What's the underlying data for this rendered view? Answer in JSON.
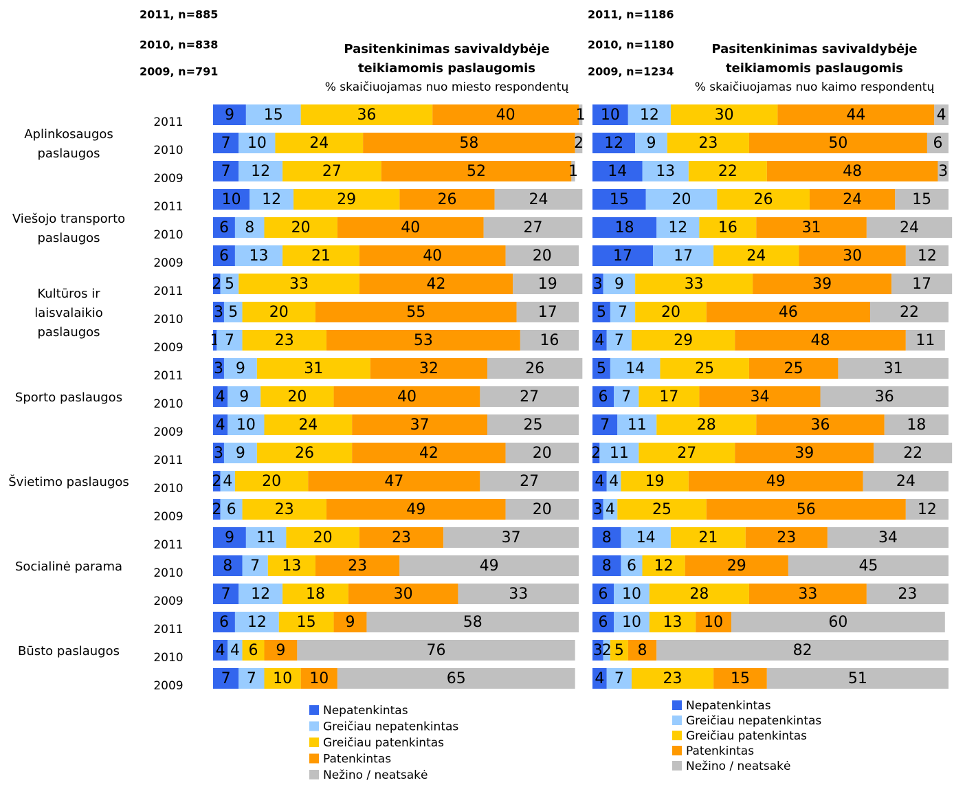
{
  "chart_data": [
    {
      "type": "bar",
      "orientation": "horizontal",
      "stacked": true,
      "title": "Pasitenkinimas savivaldybėje teikiamomis paslaugomis",
      "subtitle": "% skaičiuojamas nuo miesto respondentų",
      "sample_notes": [
        "2011, n=885",
        "2010, n=838",
        "2009, n=791"
      ],
      "groups": [
        "Aplinkosaugos paslaugos",
        "Viešojo transporto paslaugos",
        "Kultūros ir laisvalaikio paslaugos",
        "Sporto paslaugos",
        "Švietimo paslaugos",
        "Socialinė parama",
        "Būsto paslaugos"
      ],
      "categories": [
        "2011",
        "2010",
        "2009",
        "2011",
        "2010",
        "2009",
        "2011",
        "2010",
        "2009",
        "2011",
        "2010",
        "2009",
        "2011",
        "2010",
        "2009",
        "2011",
        "2010",
        "2009",
        "2011",
        "2010",
        "2009"
      ],
      "xlim": [
        0,
        100
      ],
      "series": [
        {
          "name": "Nepatenkintas",
          "color": "#3366ee",
          "values": [
            9,
            7,
            7,
            10,
            6,
            6,
            2,
            3,
            1,
            3,
            4,
            4,
            3,
            2,
            2,
            9,
            8,
            7,
            6,
            4,
            7
          ]
        },
        {
          "name": "Greičiau nepatenkintas",
          "color": "#99ccff",
          "values": [
            15,
            10,
            12,
            12,
            8,
            13,
            5,
            5,
            7,
            9,
            9,
            10,
            9,
            4,
            6,
            11,
            7,
            12,
            12,
            4,
            7
          ]
        },
        {
          "name": "Greičiau patenkintas",
          "color": "#ffcc00",
          "values": [
            36,
            24,
            27,
            29,
            20,
            21,
            33,
            20,
            23,
            31,
            20,
            24,
            26,
            20,
            23,
            20,
            13,
            18,
            15,
            6,
            10
          ]
        },
        {
          "name": "Patenkintas",
          "color": "#ff9900",
          "values": [
            40,
            58,
            52,
            26,
            40,
            40,
            42,
            55,
            53,
            32,
            40,
            37,
            42,
            47,
            49,
            23,
            23,
            30,
            9,
            9,
            10
          ]
        },
        {
          "name": "Nežino / neatsakė",
          "color": "#c0c0c0",
          "values": [
            1,
            2,
            1,
            24,
            27,
            20,
            19,
            17,
            16,
            26,
            27,
            25,
            20,
            27,
            20,
            37,
            49,
            33,
            58,
            76,
            65
          ]
        }
      ]
    },
    {
      "type": "bar",
      "orientation": "horizontal",
      "stacked": true,
      "title": "Pasitenkinimas savivaldybėje teikiamomis paslaugomis",
      "subtitle": "% skaičiuojamas nuo kaimo respondentų",
      "sample_notes": [
        "2011, n=1186",
        "2010, n=1180",
        "2009, n=1234"
      ],
      "xlim": [
        0,
        100
      ],
      "series": [
        {
          "name": "Nepatenkintas",
          "color": "#3366ee",
          "values": [
            10,
            12,
            14,
            15,
            18,
            17,
            3,
            5,
            4,
            5,
            6,
            7,
            2,
            4,
            3,
            8,
            8,
            6,
            6,
            3,
            4
          ]
        },
        {
          "name": "Greičiau nepatenkintas",
          "color": "#99ccff",
          "values": [
            12,
            9,
            13,
            20,
            12,
            17,
            9,
            7,
            7,
            14,
            7,
            11,
            11,
            4,
            4,
            14,
            6,
            10,
            10,
            2,
            7
          ]
        },
        {
          "name": "Greičiau patenkintas",
          "color": "#ffcc00",
          "values": [
            30,
            23,
            22,
            26,
            16,
            24,
            33,
            20,
            29,
            25,
            17,
            28,
            27,
            19,
            25,
            21,
            12,
            28,
            13,
            5,
            23
          ]
        },
        {
          "name": "Patenkintas",
          "color": "#ff9900",
          "values": [
            44,
            50,
            48,
            24,
            31,
            30,
            39,
            46,
            48,
            25,
            34,
            36,
            39,
            49,
            56,
            23,
            29,
            33,
            10,
            8,
            15
          ]
        },
        {
          "name": "Nežino / neatsakė",
          "color": "#c0c0c0",
          "values": [
            4,
            6,
            3,
            15,
            24,
            12,
            17,
            22,
            11,
            31,
            36,
            18,
            22,
            24,
            12,
            34,
            45,
            23,
            60,
            82,
            51
          ]
        }
      ]
    }
  ]
}
